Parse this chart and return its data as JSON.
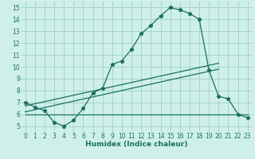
{
  "xlabel": "Humidex (Indice chaleur)",
  "bg_color": "#cff0ea",
  "grid_color": "#a0cfc8",
  "line_color": "#1a7060",
  "xlim": [
    -0.5,
    23.5
  ],
  "ylim": [
    4.5,
    15.5
  ],
  "xticks": [
    0,
    1,
    2,
    3,
    4,
    5,
    6,
    7,
    8,
    9,
    10,
    11,
    12,
    13,
    14,
    15,
    16,
    17,
    18,
    19,
    20,
    21,
    22,
    23
  ],
  "yticks": [
    5,
    6,
    7,
    8,
    9,
    10,
    11,
    12,
    13,
    14,
    15
  ],
  "line1_x": [
    0,
    1,
    2,
    3,
    4,
    5,
    6,
    7,
    8,
    9,
    10,
    11,
    12,
    13,
    14,
    15,
    16,
    17,
    18,
    19,
    20,
    21,
    22,
    23
  ],
  "line1_y": [
    7.0,
    6.6,
    6.3,
    5.3,
    5.0,
    5.5,
    6.5,
    7.8,
    8.2,
    10.2,
    10.5,
    11.5,
    12.8,
    13.5,
    14.3,
    15.0,
    14.8,
    14.5,
    14.0,
    9.7,
    7.5,
    7.3,
    6.0,
    5.7
  ],
  "line2_x": [
    0,
    23
  ],
  "line2_y": [
    6.0,
    6.0
  ],
  "line3_x": [
    0,
    20
  ],
  "line3_y": [
    6.2,
    9.8
  ],
  "line4_x": [
    0,
    20
  ],
  "line4_y": [
    6.7,
    10.3
  ],
  "tick_fontsize": 5.5,
  "xlabel_fontsize": 6.5,
  "markersize": 3.5,
  "linewidth": 0.9
}
